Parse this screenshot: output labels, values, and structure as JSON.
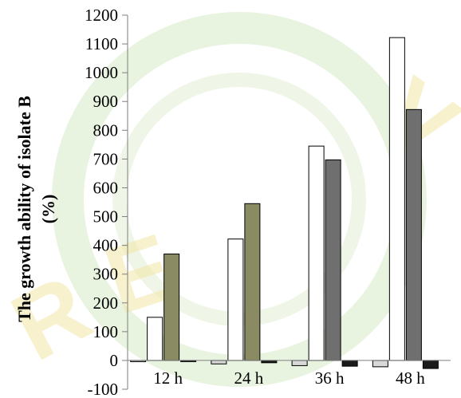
{
  "chart_data": {
    "type": "bar",
    "ylabel_line1": "The growth ability of isolate B",
    "ylabel_line2": "(%)",
    "xlabel": "",
    "ylim": [
      -100,
      1200
    ],
    "yticks": [
      1200,
      1100,
      1000,
      900,
      800,
      700,
      600,
      500,
      400,
      300,
      200,
      100,
      0,
      -100
    ],
    "categories": [
      "12 h",
      "24 h",
      "36 h",
      "48 h"
    ],
    "series": [
      {
        "values": [
          -3,
          -12,
          -18,
          -22
        ],
        "fill": "#d8d8d8",
        "stroke": "#000000"
      },
      {
        "values": [
          150,
          422,
          745,
          1122
        ],
        "fill": "#ffffff",
        "stroke": "#000000"
      },
      {
        "values": [
          370,
          545,
          697,
          872
        ],
        "fill_by_category": [
          "#8a8b63",
          "#8a8b63",
          "#6f6f6f",
          "#6f6f6f"
        ],
        "stroke": "#000000"
      },
      {
        "values": [
          -3,
          -8,
          -20,
          -28
        ],
        "fill": "#1a1a1a",
        "stroke": "#000000"
      }
    ],
    "grid": false,
    "legend": "none"
  },
  "colors": {
    "watermark_green": "#bcd9a6",
    "watermark_yellow": "#f3e9a0"
  }
}
